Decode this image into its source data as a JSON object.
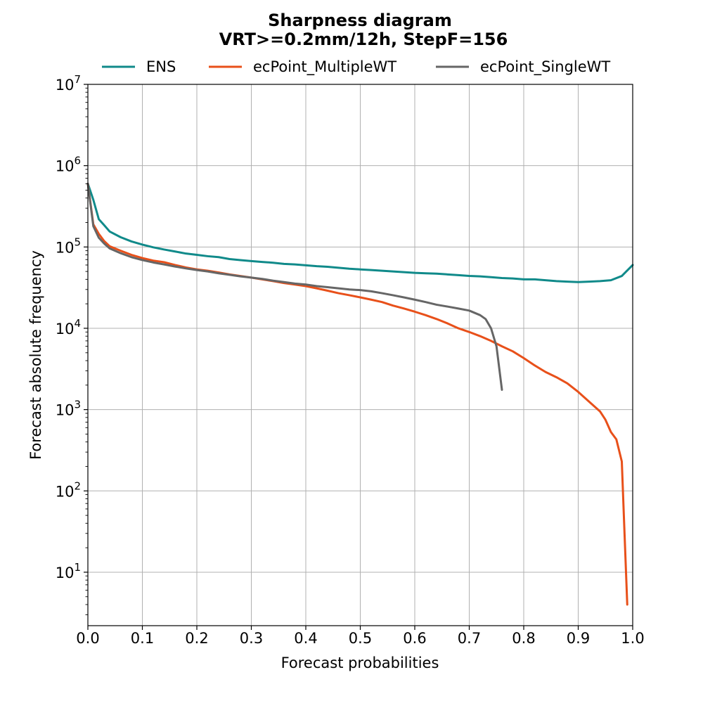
{
  "chart_data": {
    "type": "line",
    "title": "Sharpness diagram",
    "subtitle": "VRT>=0.2mm/12h, StepF=156",
    "xlabel": "Forecast probabilities",
    "ylabel": "Forecast absolute frequency",
    "xlim": [
      0,
      1
    ],
    "ylim": [
      2.2,
      10000000
    ],
    "yscale": "log",
    "grid": true,
    "legend_position": "top",
    "x_ticks": [
      "0.0",
      "0.1",
      "0.2",
      "0.3",
      "0.4",
      "0.5",
      "0.6",
      "0.7",
      "0.8",
      "0.9",
      "1.0"
    ],
    "y_ticks": [
      {
        "value": 10,
        "base": "10",
        "exp": "1"
      },
      {
        "value": 100,
        "base": "10",
        "exp": "2"
      },
      {
        "value": 1000,
        "base": "10",
        "exp": "3"
      },
      {
        "value": 10000,
        "base": "10",
        "exp": "4"
      },
      {
        "value": 100000,
        "base": "10",
        "exp": "5"
      },
      {
        "value": 1000000,
        "base": "10",
        "exp": "6"
      },
      {
        "value": 10000000,
        "base": "10",
        "exp": "7"
      }
    ],
    "series": [
      {
        "name": "ENS",
        "color": "#108a8a",
        "points": [
          [
            0.0,
            600000
          ],
          [
            0.01,
            380000
          ],
          [
            0.02,
            220000
          ],
          [
            0.03,
            185000
          ],
          [
            0.04,
            155000
          ],
          [
            0.06,
            132000
          ],
          [
            0.08,
            117000
          ],
          [
            0.1,
            107000
          ],
          [
            0.12,
            99000
          ],
          [
            0.14,
            93000
          ],
          [
            0.16,
            88000
          ],
          [
            0.18,
            83000
          ],
          [
            0.2,
            80000
          ],
          [
            0.22,
            77000
          ],
          [
            0.24,
            75000
          ],
          [
            0.26,
            71000
          ],
          [
            0.28,
            69000
          ],
          [
            0.3,
            67000
          ],
          [
            0.32,
            65500
          ],
          [
            0.34,
            64000
          ],
          [
            0.36,
            62000
          ],
          [
            0.38,
            61000
          ],
          [
            0.4,
            59500
          ],
          [
            0.42,
            58000
          ],
          [
            0.44,
            57000
          ],
          [
            0.46,
            55500
          ],
          [
            0.48,
            54000
          ],
          [
            0.5,
            53000
          ],
          [
            0.52,
            52000
          ],
          [
            0.54,
            51000
          ],
          [
            0.56,
            50000
          ],
          [
            0.58,
            49000
          ],
          [
            0.6,
            48000
          ],
          [
            0.62,
            47500
          ],
          [
            0.64,
            47000
          ],
          [
            0.66,
            46000
          ],
          [
            0.68,
            45000
          ],
          [
            0.7,
            44000
          ],
          [
            0.72,
            43500
          ],
          [
            0.74,
            42500
          ],
          [
            0.76,
            41500
          ],
          [
            0.78,
            41000
          ],
          [
            0.8,
            40000
          ],
          [
            0.82,
            40000
          ],
          [
            0.84,
            39000
          ],
          [
            0.86,
            38000
          ],
          [
            0.88,
            37500
          ],
          [
            0.9,
            37000
          ],
          [
            0.92,
            37500
          ],
          [
            0.94,
            38000
          ],
          [
            0.96,
            39000
          ],
          [
            0.98,
            44000
          ],
          [
            1.0,
            60000
          ]
        ]
      },
      {
        "name": "ecPoint_MultipleWT",
        "color": "#e8501a",
        "points": [
          [
            0.0,
            600000
          ],
          [
            0.01,
            190000
          ],
          [
            0.02,
            145000
          ],
          [
            0.03,
            118000
          ],
          [
            0.04,
            102000
          ],
          [
            0.06,
            90000
          ],
          [
            0.08,
            80000
          ],
          [
            0.1,
            73000
          ],
          [
            0.12,
            68000
          ],
          [
            0.14,
            65000
          ],
          [
            0.16,
            60000
          ],
          [
            0.18,
            56000
          ],
          [
            0.2,
            53000
          ],
          [
            0.22,
            51000
          ],
          [
            0.24,
            48500
          ],
          [
            0.26,
            46000
          ],
          [
            0.28,
            44000
          ],
          [
            0.3,
            42000
          ],
          [
            0.32,
            40000
          ],
          [
            0.34,
            38000
          ],
          [
            0.36,
            36000
          ],
          [
            0.38,
            34500
          ],
          [
            0.4,
            33000
          ],
          [
            0.42,
            31000
          ],
          [
            0.44,
            29000
          ],
          [
            0.46,
            27000
          ],
          [
            0.48,
            25500
          ],
          [
            0.5,
            24000
          ],
          [
            0.52,
            22500
          ],
          [
            0.54,
            21000
          ],
          [
            0.56,
            19000
          ],
          [
            0.58,
            17500
          ],
          [
            0.6,
            16000
          ],
          [
            0.62,
            14500
          ],
          [
            0.64,
            13000
          ],
          [
            0.66,
            11500
          ],
          [
            0.68,
            10000
          ],
          [
            0.7,
            9000
          ],
          [
            0.72,
            8000
          ],
          [
            0.74,
            7000
          ],
          [
            0.76,
            6000
          ],
          [
            0.78,
            5200
          ],
          [
            0.8,
            4300
          ],
          [
            0.82,
            3500
          ],
          [
            0.84,
            2900
          ],
          [
            0.86,
            2500
          ],
          [
            0.88,
            2100
          ],
          [
            0.9,
            1650
          ],
          [
            0.92,
            1250
          ],
          [
            0.94,
            950
          ],
          [
            0.95,
            750
          ],
          [
            0.96,
            530
          ],
          [
            0.97,
            430
          ],
          [
            0.98,
            230
          ],
          [
            0.985,
            30
          ],
          [
            0.99,
            4
          ]
        ]
      },
      {
        "name": "ecPoint_SingleWT",
        "color": "#666666",
        "points": [
          [
            0.0,
            600000
          ],
          [
            0.01,
            180000
          ],
          [
            0.02,
            130000
          ],
          [
            0.03,
            110000
          ],
          [
            0.04,
            96000
          ],
          [
            0.06,
            84000
          ],
          [
            0.08,
            75000
          ],
          [
            0.1,
            69000
          ],
          [
            0.12,
            64500
          ],
          [
            0.14,
            61000
          ],
          [
            0.16,
            57500
          ],
          [
            0.18,
            54500
          ],
          [
            0.2,
            52000
          ],
          [
            0.22,
            50000
          ],
          [
            0.24,
            47500
          ],
          [
            0.26,
            45500
          ],
          [
            0.28,
            43500
          ],
          [
            0.3,
            42000
          ],
          [
            0.32,
            40500
          ],
          [
            0.34,
            38500
          ],
          [
            0.36,
            37000
          ],
          [
            0.38,
            35500
          ],
          [
            0.4,
            34500
          ],
          [
            0.42,
            33000
          ],
          [
            0.44,
            32000
          ],
          [
            0.46,
            31000
          ],
          [
            0.48,
            30000
          ],
          [
            0.5,
            29500
          ],
          [
            0.52,
            28500
          ],
          [
            0.54,
            27000
          ],
          [
            0.56,
            25500
          ],
          [
            0.58,
            24000
          ],
          [
            0.6,
            22500
          ],
          [
            0.62,
            21000
          ],
          [
            0.64,
            19500
          ],
          [
            0.66,
            18500
          ],
          [
            0.68,
            17500
          ],
          [
            0.7,
            16500
          ],
          [
            0.72,
            14500
          ],
          [
            0.73,
            13000
          ],
          [
            0.74,
            10000
          ],
          [
            0.75,
            6000
          ],
          [
            0.76,
            1750
          ]
        ]
      }
    ]
  }
}
